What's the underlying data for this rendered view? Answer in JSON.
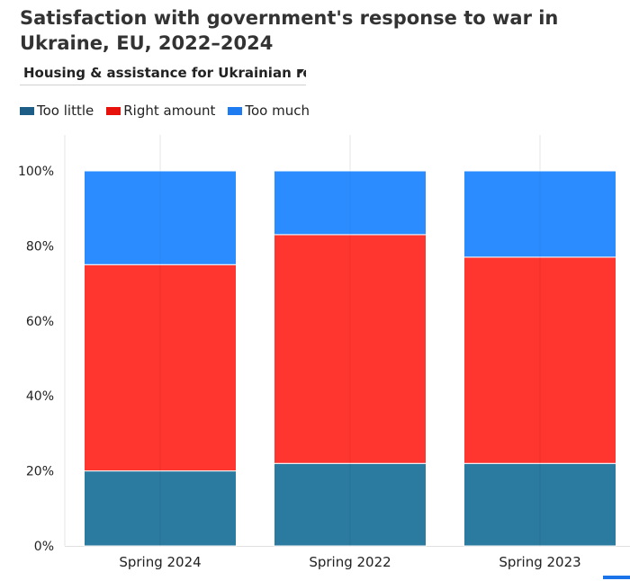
{
  "header": {
    "title": "Satisfaction with government's response to war in Ukraine, EU, 2022–2024"
  },
  "filter": {
    "selected": "Housing & assistance for Ukrainian refugees"
  },
  "colors": {
    "too_little": "#2b7aa0",
    "right_amount": "#ff3530",
    "too_much": "#2b8cff",
    "legend_too_little": "#1d5e86",
    "legend_right_amount": "#e8120c",
    "legend_too_much": "#1f7cf0"
  },
  "chart_data": {
    "type": "bar",
    "stacked": true,
    "categories": [
      "Spring 2024",
      "Spring 2022",
      "Spring 2023"
    ],
    "series": [
      {
        "name": "Too little",
        "values": [
          20,
          22,
          22
        ]
      },
      {
        "name": "Right amount",
        "values": [
          55,
          61,
          55
        ]
      },
      {
        "name": "Too much",
        "values": [
          25,
          17,
          23
        ]
      }
    ],
    "ylim": [
      0,
      100
    ],
    "yticks": [
      0,
      20,
      40,
      60,
      80,
      100
    ],
    "ytick_labels": [
      "0%",
      "20%",
      "40%",
      "60%",
      "80%",
      "100%"
    ],
    "grid": true,
    "legend_position": "top-left"
  }
}
